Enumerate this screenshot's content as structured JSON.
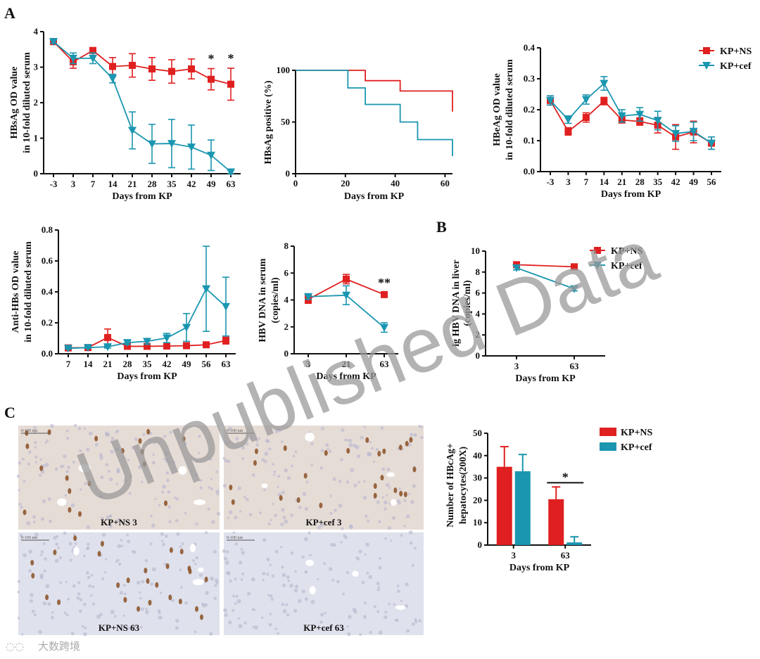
{
  "panel_labels": {
    "a": "A",
    "b": "B",
    "c": "C"
  },
  "watermark": "Unpublished Data",
  "logo_text": "大数跨境",
  "colors": {
    "ns": "#e02020",
    "cef": "#1a96b0",
    "tissue_bg": "#e6dcd6",
    "tissue_bg2": "#dfe1ec",
    "stain": "#8a5024"
  },
  "series_names": {
    "ns": "KP+NS",
    "cef": "KP+cef"
  },
  "micrographs": [
    {
      "label": "KP+NS 3",
      "scale": "0-100 nm",
      "cells": 18
    },
    {
      "label": "KP+cef 3",
      "scale": "0-100 nm",
      "cells": 24
    },
    {
      "label": "KP+NS 63",
      "scale": "0-100 nm",
      "cells": 26
    },
    {
      "label": "KP+cef 63",
      "scale": "0-100 nm",
      "cells": 0
    }
  ],
  "chart_data": [
    {
      "id": "hbsag",
      "type": "line",
      "ylabel": [
        "HBsAg OD value",
        "in 10-fold diluted serum"
      ],
      "xlabel": "Days from KP",
      "categories": [
        "-3",
        "3",
        "7",
        "14",
        "21",
        "28",
        "35",
        "42",
        "49",
        "63"
      ],
      "ylim": [
        0,
        4
      ],
      "yticks": [
        "0",
        "1",
        "2",
        "3",
        "4"
      ],
      "series": [
        {
          "name": "KP+NS",
          "values": [
            3.72,
            3.15,
            3.47,
            3.02,
            3.05,
            2.95,
            2.88,
            2.95,
            2.66,
            2.52
          ],
          "errors": [
            0.05,
            0.18,
            0.08,
            0.25,
            0.33,
            0.32,
            0.33,
            0.28,
            0.3,
            0.45
          ]
        },
        {
          "name": "KP+cef",
          "values": [
            3.72,
            3.25,
            3.25,
            2.68,
            1.22,
            0.84,
            0.85,
            0.75,
            0.52,
            0.05
          ],
          "errors": [
            0.05,
            0.15,
            0.15,
            0.12,
            0.52,
            0.55,
            0.68,
            0.62,
            0.43,
            0.04
          ]
        }
      ],
      "significance": [
        {
          "category": "49",
          "label": "*"
        },
        {
          "category": "63",
          "label": "*"
        }
      ]
    },
    {
      "id": "hbsag_positive",
      "type": "step",
      "ylabel": [
        "HBsAg positive (%)"
      ],
      "xlabel": "Days from KP",
      "xlim": [
        0,
        63
      ],
      "xticks": [
        "0",
        "20",
        "40",
        "60"
      ],
      "ylim": [
        0,
        100
      ],
      "yticks": [
        "0",
        "50",
        "100"
      ],
      "series": [
        {
          "name": "KP+NS",
          "points": [
            [
              0,
              100
            ],
            [
              28,
              100
            ],
            [
              28,
              90
            ],
            [
              42,
              90
            ],
            [
              42,
              80
            ],
            [
              63,
              80
            ],
            [
              63,
              60
            ]
          ]
        },
        {
          "name": "KP+cef",
          "points": [
            [
              0,
              100
            ],
            [
              21,
              100
            ],
            [
              21,
              83
            ],
            [
              28,
              83
            ],
            [
              28,
              67
            ],
            [
              42,
              67
            ],
            [
              42,
              50
            ],
            [
              49,
              50
            ],
            [
              49,
              33
            ],
            [
              63,
              33
            ],
            [
              63,
              17
            ]
          ]
        }
      ]
    },
    {
      "id": "hbeag",
      "type": "line",
      "ylabel": [
        "HBeAg OD value",
        "in 10-fold diluted serum"
      ],
      "xlabel": "Days from KP",
      "categories": [
        "-3",
        "3",
        "7",
        "14",
        "21",
        "28",
        "35",
        "42",
        "49",
        "56"
      ],
      "ylim": [
        0,
        0.4
      ],
      "yticks": [
        "0.0",
        "0.1",
        "0.2",
        "0.3",
        "0.4"
      ],
      "series": [
        {
          "name": "KP+NS",
          "values": [
            0.23,
            0.13,
            0.175,
            0.228,
            0.167,
            0.162,
            0.15,
            0.112,
            0.128,
            0.092
          ],
          "errors": [
            0.015,
            0.012,
            0.015,
            0.012,
            0.01,
            0.012,
            0.025,
            0.04,
            0.035,
            0.02
          ]
        },
        {
          "name": "KP+cef",
          "values": [
            0.23,
            0.168,
            0.233,
            0.285,
            0.18,
            0.185,
            0.165,
            0.123,
            0.13,
            0.092
          ],
          "errors": [
            0.015,
            0.012,
            0.015,
            0.022,
            0.02,
            0.022,
            0.03,
            0.025,
            0.03,
            0.02
          ]
        }
      ],
      "legend": [
        "KP+NS",
        "KP+cef"
      ]
    },
    {
      "id": "antihbs",
      "type": "line",
      "ylabel": [
        "Anti-HBs OD value",
        "in 10-fold diluted serum"
      ],
      "xlabel": "Days from KP",
      "categories": [
        "7",
        "14",
        "21",
        "28",
        "35",
        "42",
        "49",
        "56",
        "63"
      ],
      "ylim": [
        0,
        0.8
      ],
      "yticks": [
        "0.0",
        "0.2",
        "0.4",
        "0.6",
        "0.8"
      ],
      "series": [
        {
          "name": "KP+NS",
          "values": [
            0.038,
            0.04,
            0.105,
            0.048,
            0.048,
            0.05,
            0.052,
            0.058,
            0.085
          ],
          "errors": [
            0.005,
            0.005,
            0.055,
            0.008,
            0.008,
            0.008,
            0.01,
            0.012,
            0.022
          ]
        },
        {
          "name": "KP+cef",
          "values": [
            0.035,
            0.04,
            0.045,
            0.072,
            0.08,
            0.102,
            0.17,
            0.42,
            0.305
          ],
          "errors": [
            0.005,
            0.005,
            0.008,
            0.012,
            0.018,
            0.03,
            0.09,
            0.275,
            0.19
          ]
        }
      ]
    },
    {
      "id": "hbvdna_serum",
      "type": "line",
      "ylabel": [
        "HBV DNA in serum",
        "(copies/ml)"
      ],
      "xlabel": "Days from KP",
      "categories": [
        "3",
        "21",
        "63"
      ],
      "ylim": [
        0,
        8
      ],
      "yticks": [
        "0",
        "2",
        "4",
        "6",
        "8"
      ],
      "series": [
        {
          "name": "KP+NS",
          "values": [
            4.05,
            5.55,
            4.4
          ],
          "errors": [
            0.3,
            0.35,
            0.15
          ]
        },
        {
          "name": "KP+cef",
          "values": [
            4.25,
            4.35,
            1.95
          ],
          "errors": [
            0.2,
            0.7,
            0.35
          ]
        }
      ],
      "significance": [
        {
          "category": "63",
          "label": "**"
        }
      ]
    },
    {
      "id": "hbvdna_liver",
      "type": "line",
      "ylabel": [
        "lg HBV DNA in liver",
        "(copies/ml)"
      ],
      "xlabel": "Days from KP",
      "categories": [
        "3",
        "63"
      ],
      "ylim": [
        0,
        10
      ],
      "yticks": [
        "0",
        "2",
        "4",
        "6",
        "8",
        "10"
      ],
      "series": [
        {
          "name": "KP+NS",
          "values": [
            8.7,
            8.5
          ],
          "errors": [
            0.2,
            0.2
          ]
        },
        {
          "name": "KP+cef",
          "values": [
            8.4,
            6.4
          ],
          "errors": [
            0.2,
            0.2
          ]
        }
      ],
      "legend": [
        "KP+NS",
        "KP+cef"
      ]
    },
    {
      "id": "hbcag_cells",
      "type": "bar",
      "ylabel": [
        "Number of HBcAg+",
        "hepatocytes(200X)"
      ],
      "xlabel": "Days from KP",
      "categories": [
        "3",
        "63"
      ],
      "ylim": [
        0,
        50
      ],
      "yticks": [
        "0",
        "10",
        "20",
        "30",
        "40",
        "50"
      ],
      "series": [
        {
          "name": "KP+NS",
          "values": [
            35,
            20.5
          ],
          "errors": [
            9,
            5.5
          ]
        },
        {
          "name": "KP+cef",
          "values": [
            33,
            1.2
          ],
          "errors": [
            7.5,
            2.5
          ]
        }
      ],
      "significance": [
        {
          "category": "63",
          "label": "*"
        }
      ],
      "legend": [
        "KP+NS",
        "KP+cef"
      ]
    }
  ]
}
